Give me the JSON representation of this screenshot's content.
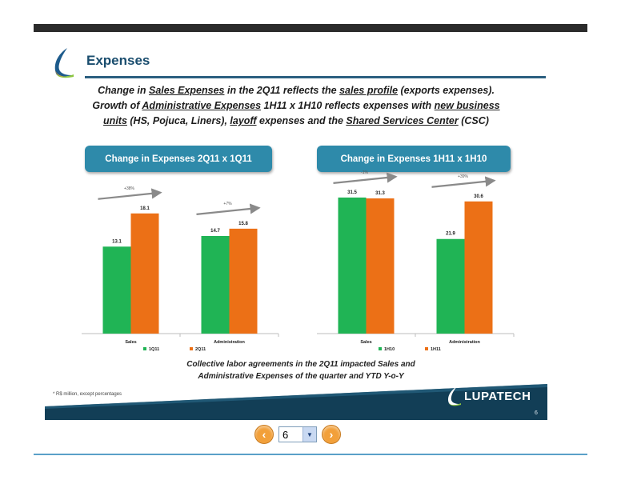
{
  "slide": {
    "title": "Expenses",
    "intro": {
      "line1_a": "Change in ",
      "line1_b": "Sales Expenses",
      "line1_c": " in the 2Q11 reflects the ",
      "line1_d": "sales profile",
      "line1_e": " (exports expenses).",
      "line2_a": "Growth of ",
      "line2_b": "Administrative Expenses",
      "line2_c": " 1H11 x 1H10 reflects expenses with ",
      "line2_d": "new business",
      "line3_a": "units",
      "line3_b": " (HS, Pojuca, Liners), ",
      "line3_c": "layoff",
      "line3_d": " expenses and the ",
      "line3_e": "Shared Services Center",
      "line3_f": " (CSC)"
    },
    "pill_left": "Change in Expenses 2Q11 x 1Q11",
    "pill_right": "Change in Expenses 1H11 x 1H10",
    "footnote_line1": "Collective labor agreements in the 2Q11 impacted Sales and",
    "footnote_line2": "Administrative Expenses of the quarter and YTD Y-o-Y",
    "small_note": "* R$ million, except percentages",
    "brand": "LUPATECH",
    "page_number": "6"
  },
  "pager": {
    "current_page": "6",
    "prev_label": "‹",
    "next_label": "›"
  },
  "colors": {
    "green": "#20b455",
    "orange": "#ec7016",
    "teal_band": "#123e56",
    "pill": "#2e8aaa"
  },
  "chart_data": [
    {
      "type": "bar",
      "categories": [
        "Sales",
        "Administration"
      ],
      "series": [
        {
          "name": "1Q11",
          "values": [
            13.1,
            14.7
          ],
          "color": "#20b455"
        },
        {
          "name": "2Q11",
          "values": [
            18.1,
            15.8
          ],
          "color": "#ec7016"
        }
      ],
      "changes": [
        "+38%",
        "+7%"
      ],
      "ylim": [
        0,
        35
      ]
    },
    {
      "type": "bar",
      "categories": [
        "Sales",
        "Administration"
      ],
      "series": [
        {
          "name": "1H10",
          "values": [
            31.5,
            21.9
          ],
          "color": "#20b455"
        },
        {
          "name": "1H11",
          "values": [
            31.3,
            30.6
          ],
          "color": "#ec7016"
        }
      ],
      "changes": [
        "-1%",
        "+39%"
      ],
      "ylim": [
        0,
        35
      ]
    }
  ]
}
